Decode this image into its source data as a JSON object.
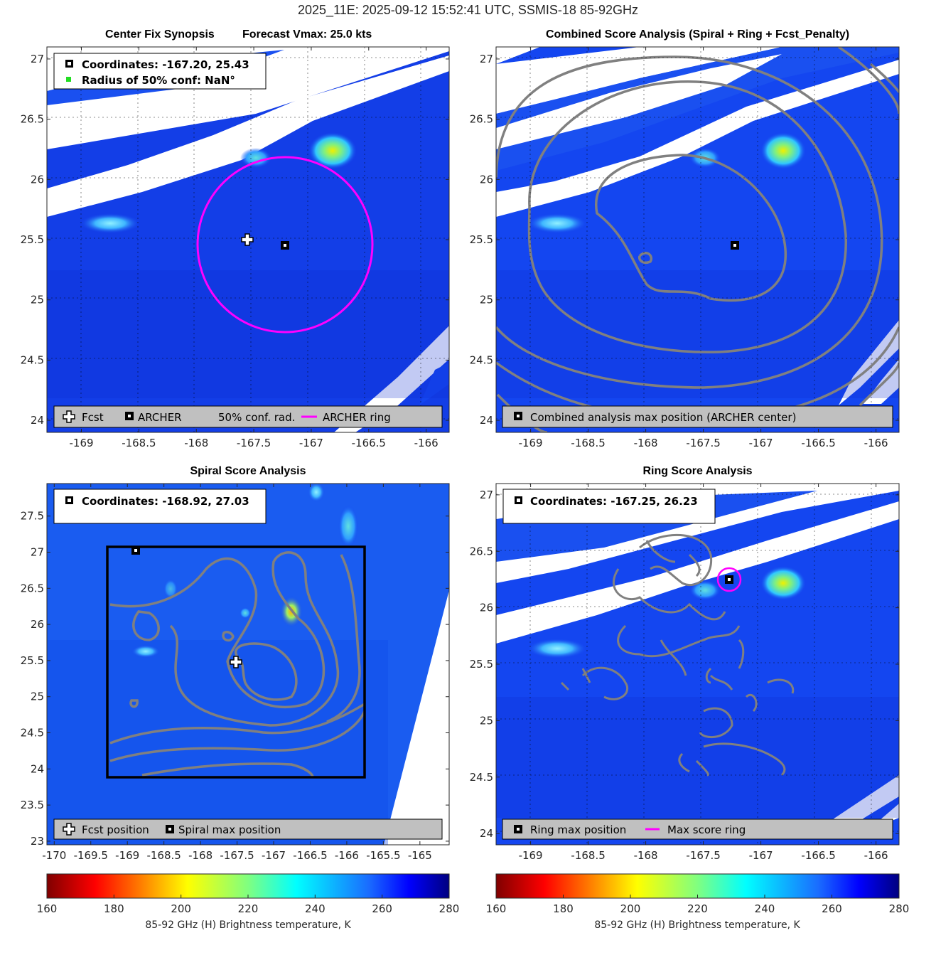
{
  "figure": {
    "suptitle": "2025_11E: 2025-09-12 15:52:41 UTC, SSMIS-18 85-92GHz"
  },
  "panels": {
    "synopsis": {
      "title_left": "Center Fix Synopsis",
      "title_right": "Forecast Vmax: 25.0 kts",
      "coords_text": "Coordinates: -167.20, 25.43",
      "radius_text": "Radius of 50% conf: NaN°",
      "legend": [
        "Fcst",
        "ARCHER",
        "50% conf. rad.",
        "ARCHER ring"
      ]
    },
    "combined": {
      "title": "Combined Score Analysis (Spiral + Ring + Fcst_Penalty)",
      "legend": [
        "Combined analysis max position (ARCHER center)"
      ]
    },
    "spiral": {
      "title": "Spiral Score Analysis",
      "coords_text": "Coordinates: -168.92, 27.03",
      "legend": [
        "Fcst position",
        "Spiral max position"
      ]
    },
    "ring": {
      "title": "Ring Score Analysis",
      "coords_text": "Coordinates: -167.25, 26.23",
      "legend": [
        "Ring max position",
        "Max score ring"
      ]
    }
  },
  "colorbar": {
    "label": "85-92 GHz (H) Brightness temperature, K",
    "ticks": [
      "160",
      "180",
      "200",
      "220",
      "240",
      "260",
      "280"
    ],
    "range": [
      160,
      280
    ]
  },
  "colors": {
    "ring": "#ff00ff",
    "contour": "#808080",
    "background_field": "#1446f0",
    "marker": "#000000"
  },
  "chart_data": [
    {
      "type": "heatmap",
      "panel": "synopsis",
      "xlim": [
        -169.3,
        -165.8
      ],
      "ylim": [
        23.9,
        27.1
      ],
      "xticks": [
        -169,
        -168.5,
        -168,
        -167.5,
        -167,
        -166.5,
        -166
      ],
      "yticks": [
        24,
        24.5,
        25,
        25.5,
        26,
        26.5,
        27
      ],
      "forecast_position": [
        -167.53,
        25.48
      ],
      "archer_center": [
        -167.2,
        25.43
      ],
      "archer_ring_radius_deg": 0.7,
      "grid": true
    },
    {
      "type": "heatmap",
      "panel": "combined",
      "xlim": [
        -169.3,
        -165.8
      ],
      "ylim": [
        23.9,
        27.1
      ],
      "xticks": [
        -169,
        -168.5,
        -168,
        -167.5,
        -167,
        -166.5,
        -166
      ],
      "yticks": [
        24,
        24.5,
        25,
        25.5,
        26,
        26.5,
        27
      ],
      "max_position": [
        -167.2,
        25.43
      ],
      "grid": true
    },
    {
      "type": "heatmap",
      "panel": "spiral",
      "xlim": [
        -170.1,
        -164.6
      ],
      "ylim": [
        22.95,
        27.95
      ],
      "xticks": [
        -170,
        -169.5,
        -169,
        -168.5,
        -168,
        -167.5,
        -167,
        -166.5,
        -166,
        -165.5,
        -165
      ],
      "yticks": [
        23,
        23.5,
        24,
        24.5,
        25,
        25.5,
        26,
        26.5,
        27,
        27.5
      ],
      "forecast_position": [
        -167.53,
        25.48
      ],
      "spiral_max_position": [
        -168.92,
        27.03
      ],
      "search_box": {
        "lon": [
          -169.28,
          -165.76
        ],
        "lat": [
          23.88,
          27.08
        ]
      },
      "grid": false
    },
    {
      "type": "heatmap",
      "panel": "ring",
      "xlim": [
        -169.3,
        -165.8
      ],
      "ylim": [
        23.9,
        27.1
      ],
      "xticks": [
        -169,
        -168.5,
        -168,
        -167.5,
        -167,
        -166.5,
        -166
      ],
      "yticks": [
        24,
        24.5,
        25,
        25.5,
        26,
        26.5,
        27
      ],
      "ring_max_position": [
        -167.25,
        26.23
      ],
      "grid": true
    }
  ]
}
